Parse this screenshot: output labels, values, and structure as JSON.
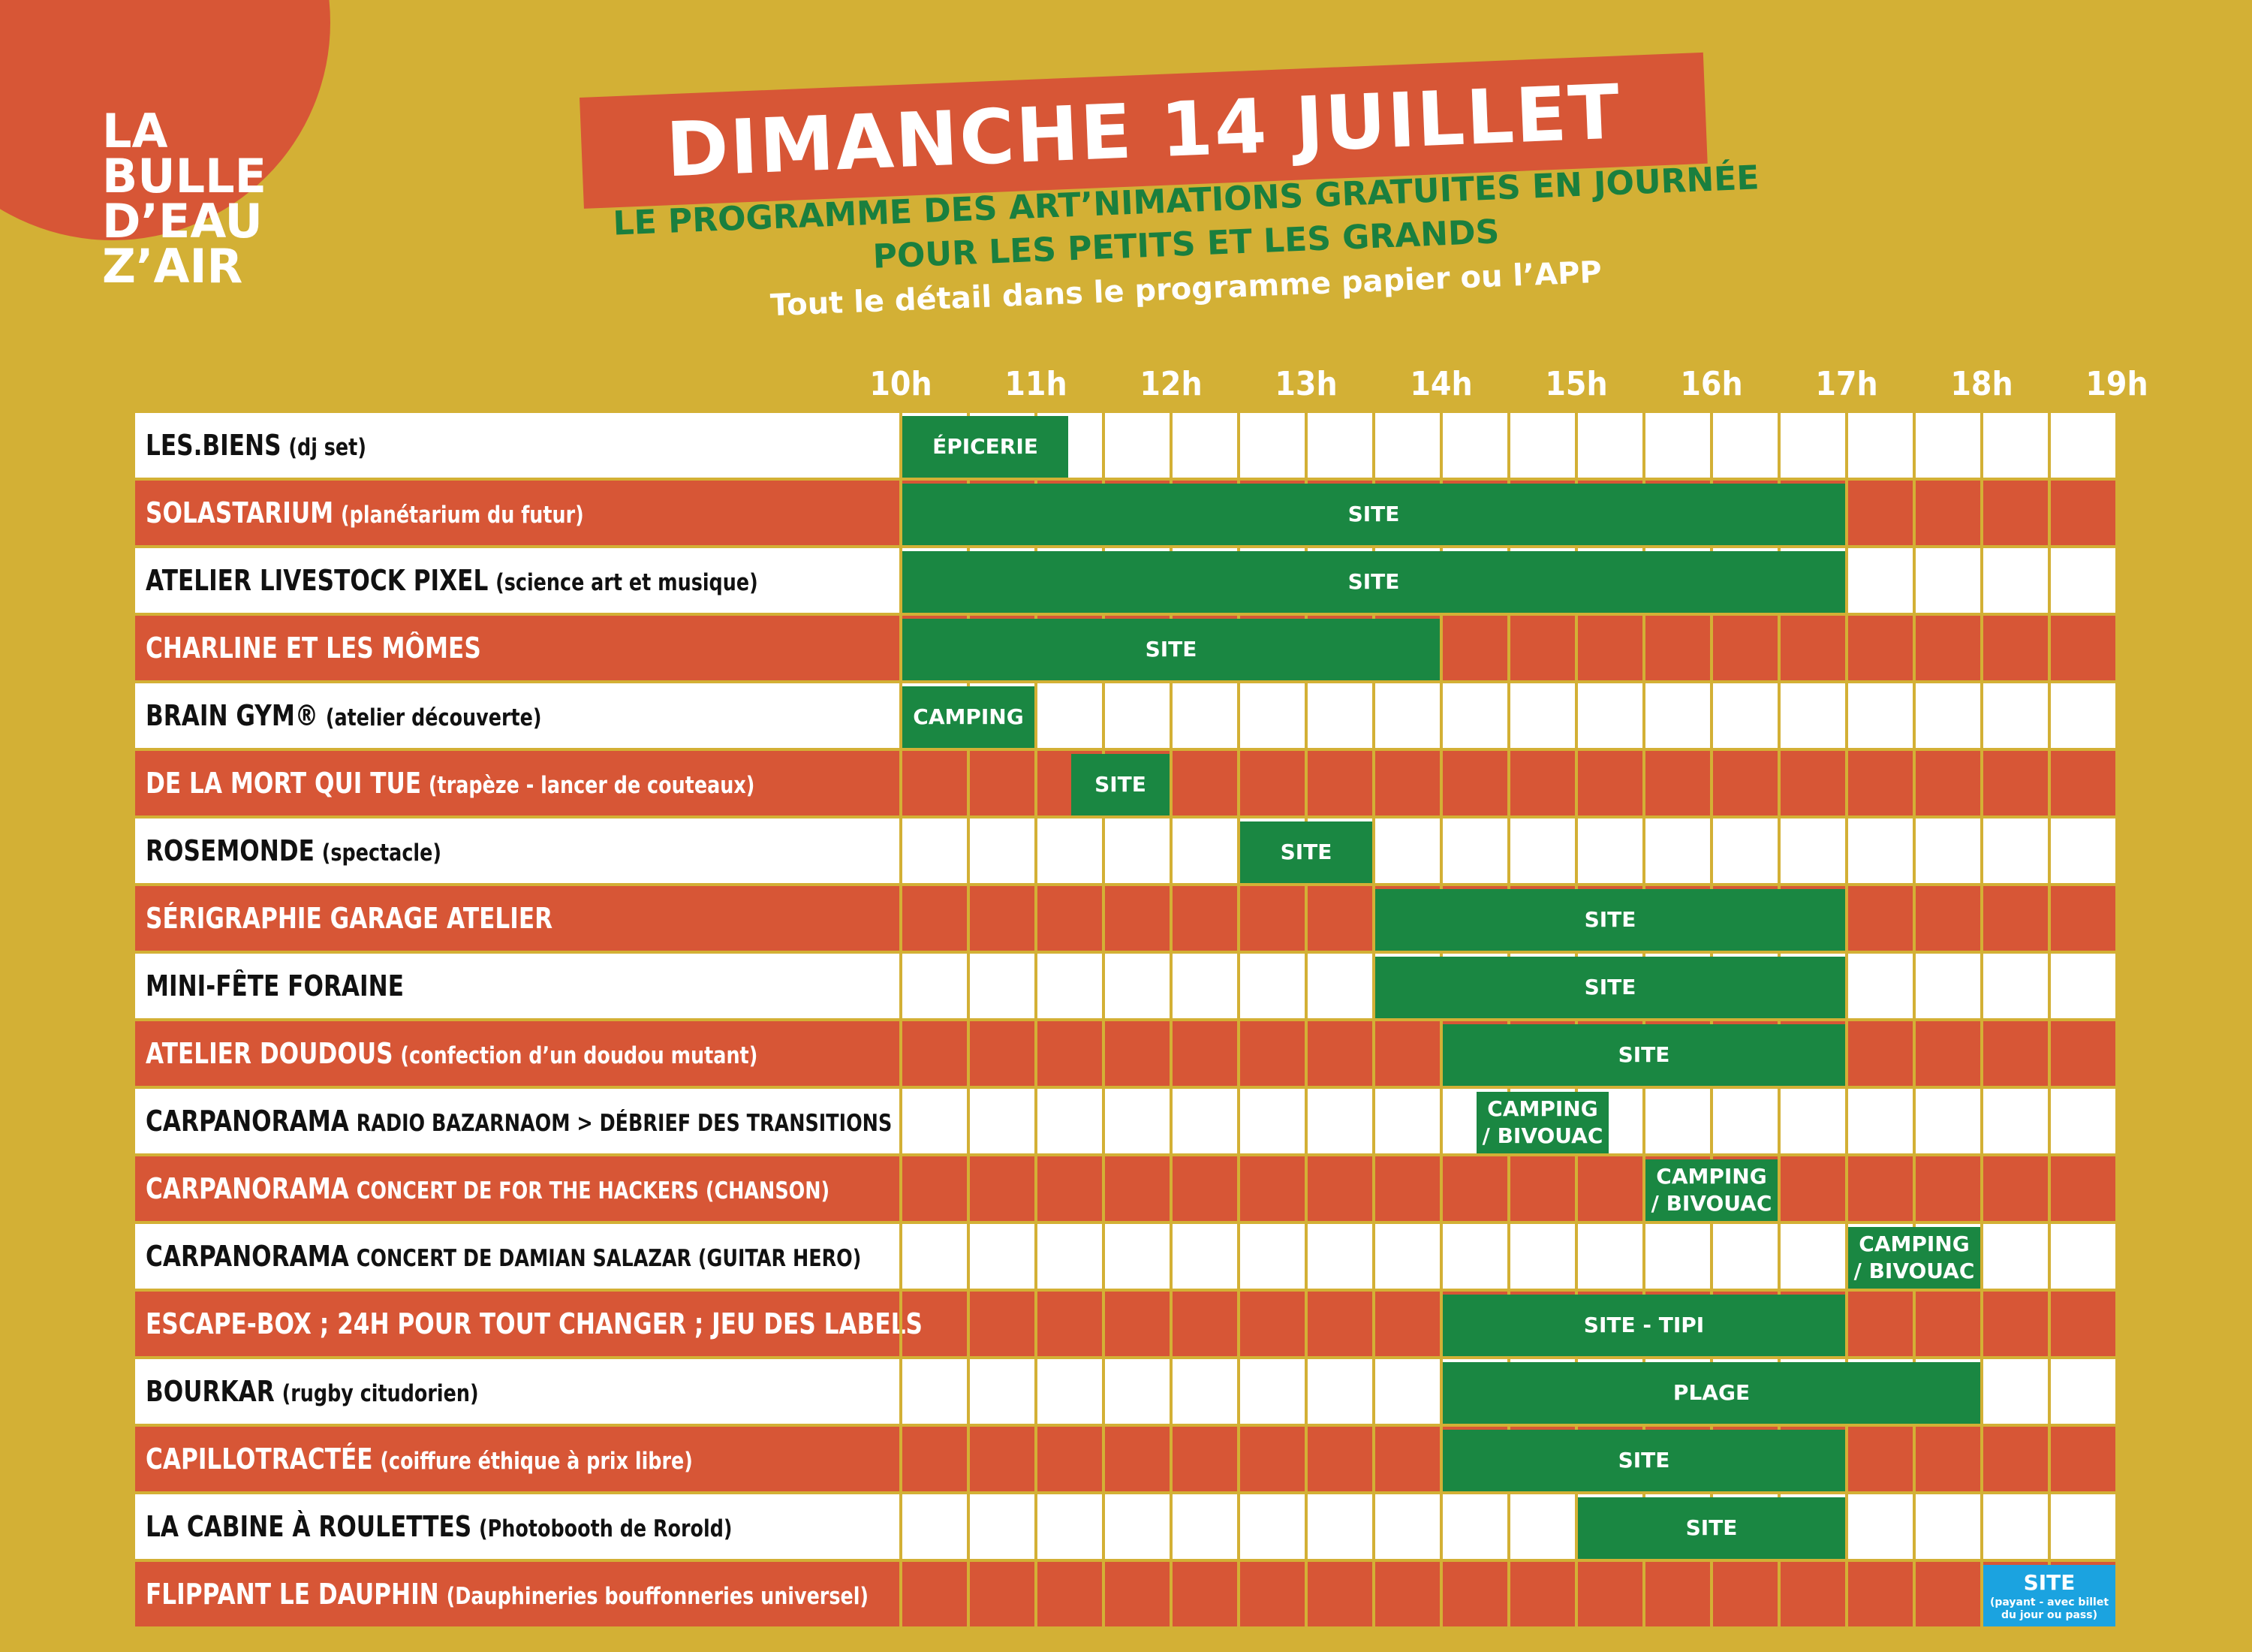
{
  "logo": {
    "lines": [
      "LA",
      "BULLE",
      "D’EAU",
      "Z’AIR"
    ]
  },
  "title": "DIMANCHE 14 JUILLET",
  "subtitle_lines": [
    "LE PROGRAMME DES ART’NIMATIONS GRATUITES EN JOURNÉE",
    "POUR LES PETITS ET LES GRANDS",
    "Tout le détail dans le programme papier ou l’APP"
  ],
  "hours": [
    "10h",
    "11h",
    "12h",
    "13h",
    "14h",
    "15h",
    "16h",
    "17h",
    "18h",
    "19h"
  ],
  "colors": {
    "background": "#D3B035",
    "orange": "#D75636",
    "green": "#1A8742",
    "blue": "#1BA3E0",
    "white": "#FFFFFF"
  },
  "rows": [
    {
      "name": "LES.BIENS",
      "detail": "(dj set)",
      "style": "white",
      "blocks": [
        {
          "start": 10.0,
          "end": 11.25,
          "label": "ÉPICERIE"
        }
      ]
    },
    {
      "name": "SOLASTARIUM",
      "detail": "(planétarium du futur)",
      "style": "orange",
      "blocks": [
        {
          "start": 10.0,
          "end": 17.0,
          "label": "SITE"
        }
      ]
    },
    {
      "name": "ATELIER LIVESTOCK PIXEL",
      "detail": "(science art et musique)",
      "style": "white",
      "blocks": [
        {
          "start": 10.0,
          "end": 17.0,
          "label": "SITE"
        }
      ]
    },
    {
      "name": "CHARLINE ET LES MÔMES",
      "detail": "",
      "style": "orange",
      "blocks": [
        {
          "start": 10.0,
          "end": 14.0,
          "label": "SITE"
        }
      ]
    },
    {
      "name": "BRAIN GYM®",
      "detail": "(atelier découverte)",
      "style": "white",
      "blocks": [
        {
          "start": 10.0,
          "end": 11.0,
          "label": "CAMPING"
        }
      ]
    },
    {
      "name": "DE LA MORT QUI TUE",
      "detail": "(trapèze - lancer de couteaux)",
      "style": "orange",
      "blocks": [
        {
          "start": 11.25,
          "end": 12.0,
          "label": "SITE"
        }
      ]
    },
    {
      "name": "ROSEMONDE",
      "detail": "(spectacle)",
      "style": "white",
      "blocks": [
        {
          "start": 12.5,
          "end": 13.5,
          "label": "SITE"
        }
      ]
    },
    {
      "name": "SÉRIGRAPHIE GARAGE ATELIER",
      "detail": "",
      "style": "orange",
      "blocks": [
        {
          "start": 13.5,
          "end": 17.0,
          "label": "SITE"
        }
      ]
    },
    {
      "name": "MINI-FÊTE FORAINE",
      "detail": "",
      "style": "white",
      "blocks": [
        {
          "start": 13.5,
          "end": 17.0,
          "label": "SITE"
        }
      ]
    },
    {
      "name": "ATELIER DOUDOUS",
      "detail": "(confection d’un doudou mutant)",
      "style": "orange",
      "blocks": [
        {
          "start": 14.0,
          "end": 17.0,
          "label": "SITE"
        }
      ]
    },
    {
      "name": "CARPANORAMA",
      "detail": "RADIO BAZARNAOM > DÉBRIEF DES TRANSITIONS",
      "style": "white",
      "blocks": [
        {
          "start": 14.25,
          "end": 15.25,
          "label": "CAMPING / BIVOUAC"
        }
      ]
    },
    {
      "name": "CARPANORAMA",
      "detail": "CONCERT DE FOR THE HACKERS (CHANSON)",
      "style": "orange",
      "blocks": [
        {
          "start": 15.5,
          "end": 16.5,
          "label": "CAMPING / BIVOUAC"
        }
      ]
    },
    {
      "name": "CARPANORAMA",
      "detail": "CONCERT DE DAMIAN SALAZAR (GUITAR HERO)",
      "style": "white",
      "blocks": [
        {
          "start": 17.0,
          "end": 18.0,
          "label": "CAMPING / BIVOUAC"
        }
      ]
    },
    {
      "name": "ESCAPE-BOX ; 24H POUR TOUT CHANGER ; JEU DES LABELS",
      "detail": "",
      "style": "orange",
      "blocks": [
        {
          "start": 14.0,
          "end": 17.0,
          "label": "SITE - TIPI"
        }
      ]
    },
    {
      "name": "BOURKAR",
      "detail": "(rugby citudorien)",
      "style": "white",
      "blocks": [
        {
          "start": 14.0,
          "end": 18.0,
          "label": "PLAGE"
        }
      ]
    },
    {
      "name": "CAPILLOTRACTÉE",
      "detail": "(coiffure éthique à prix libre)",
      "style": "orange",
      "blocks": [
        {
          "start": 14.0,
          "end": 17.0,
          "label": "SITE"
        }
      ]
    },
    {
      "name": "LA CABINE À ROULETTES",
      "detail": "(Photobooth de Rorold)",
      "style": "white",
      "blocks": [
        {
          "start": 15.0,
          "end": 17.0,
          "label": "SITE"
        }
      ]
    },
    {
      "name": "FLIPPANT LE DAUPHIN",
      "detail": "(Dauphineries bouffonneries universel)",
      "style": "orange",
      "blocks": [
        {
          "start": 18.0,
          "end": 19.0,
          "label": "SITE",
          "note": "(payant - avec billet du jour ou pass)",
          "color": "blue"
        }
      ]
    }
  ]
}
